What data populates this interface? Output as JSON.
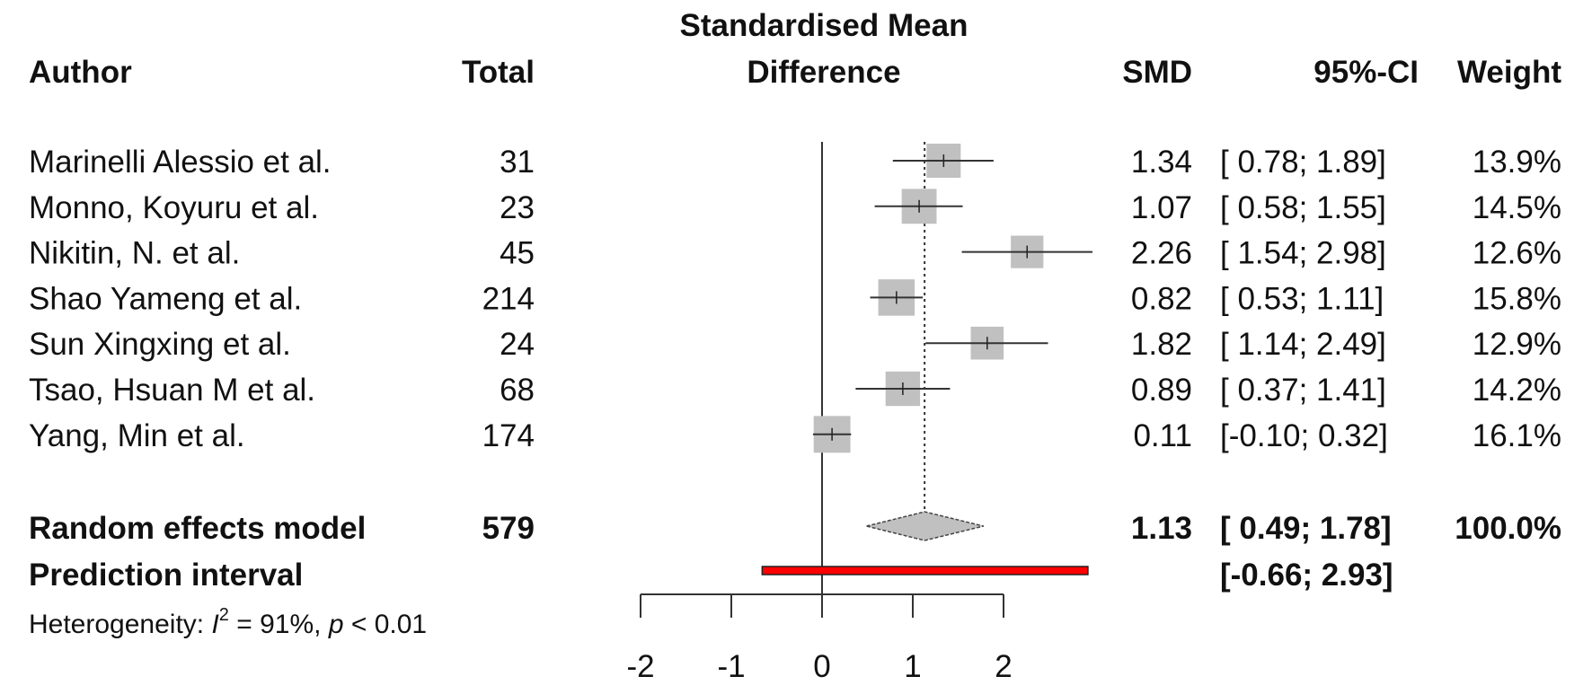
{
  "chart_data": {
    "type": "forest",
    "title": "Standardised Mean Difference",
    "headers": {
      "author": "Author",
      "total": "Total",
      "plot_line1": "Standardised Mean",
      "plot_line2": "Difference",
      "smd": "SMD",
      "ci": "95%-CI",
      "weight": "Weight"
    },
    "xlim": [
      -2,
      2
    ],
    "x_ticks": [
      -2,
      -1,
      0,
      1,
      2
    ],
    "x_tick_labels": [
      "-2",
      "-1",
      "0",
      "1",
      "2"
    ],
    "reference_line": 0,
    "studies": [
      {
        "author": "Marinelli Alessio et al.",
        "total": "31",
        "smd": 1.34,
        "lo": 0.78,
        "hi": 1.89,
        "smd_text": "1.34",
        "ci_text": "[ 0.78; 1.89]",
        "weight": 13.9,
        "weight_text": "13.9%"
      },
      {
        "author": "Monno, Koyuru et al.",
        "total": "23",
        "smd": 1.07,
        "lo": 0.58,
        "hi": 1.55,
        "smd_text": "1.07",
        "ci_text": "[ 0.58; 1.55]",
        "weight": 14.5,
        "weight_text": "14.5%"
      },
      {
        "author": "Nikitin, N. et al.",
        "total": "45",
        "smd": 2.26,
        "lo": 1.54,
        "hi": 2.98,
        "smd_text": "2.26",
        "ci_text": "[ 1.54; 2.98]",
        "weight": 12.6,
        "weight_text": "12.6%"
      },
      {
        "author": "Shao Yameng et al.",
        "total": "214",
        "smd": 0.82,
        "lo": 0.53,
        "hi": 1.11,
        "smd_text": "0.82",
        "ci_text": "[ 0.53; 1.11]",
        "weight": 15.8,
        "weight_text": "15.8%"
      },
      {
        "author": "Sun Xingxing et al.",
        "total": "24",
        "smd": 1.82,
        "lo": 1.14,
        "hi": 2.49,
        "smd_text": "1.82",
        "ci_text": "[ 1.14; 2.49]",
        "weight": 12.9,
        "weight_text": "12.9%"
      },
      {
        "author": "Tsao, Hsuan M et al.",
        "total": "68",
        "smd": 0.89,
        "lo": 0.37,
        "hi": 1.41,
        "smd_text": "0.89",
        "ci_text": "[ 0.37; 1.41]",
        "weight": 14.2,
        "weight_text": "14.2%"
      },
      {
        "author": "Yang, Min et al.",
        "total": "174",
        "smd": 0.11,
        "lo": -0.1,
        "hi": 0.32,
        "smd_text": "0.11",
        "ci_text": "[-0.10; 0.32]",
        "weight": 16.1,
        "weight_text": "16.1%"
      }
    ],
    "random_effects": {
      "label": "Random effects model",
      "total": "579",
      "smd": 1.13,
      "lo": 0.49,
      "hi": 1.78,
      "smd_text": "1.13",
      "ci_text": "[ 0.49; 1.78]",
      "weight_text": "100.0%"
    },
    "prediction_interval": {
      "label": "Prediction interval",
      "lo": -0.66,
      "hi": 2.93,
      "ci_text": "[-0.66; 2.93]"
    },
    "heterogeneity": {
      "prefix": "Heterogeneity: ",
      "i": "I",
      "sup": "2",
      "mid": " = 91%, ",
      "p": "p",
      "suffix": " < 0.01"
    },
    "colors": {
      "square": "#c0c0c0",
      "diamond": "#c0c0c0",
      "prediction": "#ff0000",
      "line": "#333333"
    }
  }
}
